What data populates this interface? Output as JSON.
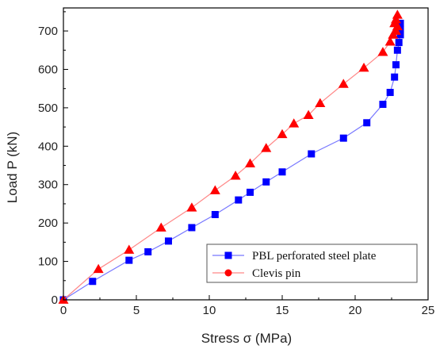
{
  "chart_data": {
    "type": "line",
    "title": "",
    "xlabel": "Stress σ (MPa)",
    "ylabel": "Load P (kN)",
    "xlim": [
      0,
      25
    ],
    "ylim": [
      0,
      760
    ],
    "xticks": [
      0,
      5,
      10,
      15,
      20,
      25
    ],
    "yticks": [
      0,
      100,
      200,
      300,
      400,
      500,
      600,
      700
    ],
    "grid": false,
    "legend_position": "bottom-right",
    "series": [
      {
        "name": "PBL perforated steel plate",
        "color": "#0000ff",
        "marker": "square",
        "line_color": "#7777ff",
        "x": [
          0,
          2.0,
          4.5,
          5.8,
          7.2,
          8.8,
          10.4,
          12.0,
          12.8,
          13.9,
          15.0,
          17.0,
          19.2,
          20.8,
          21.9,
          22.4,
          22.7,
          22.8,
          22.9,
          23.0,
          23.1,
          23.1,
          23.1
        ],
        "y": [
          0,
          48,
          103,
          125,
          153,
          188,
          222,
          260,
          280,
          307,
          333,
          380,
          421,
          461,
          509,
          540,
          580,
          612,
          650,
          670,
          690,
          705,
          720
        ]
      },
      {
        "name": "Clevis pin",
        "color": "#ff0000",
        "marker": "triangle",
        "line_color": "#ff8888",
        "legend_marker": "circle",
        "x": [
          0,
          2.4,
          4.5,
          6.7,
          8.8,
          10.4,
          11.8,
          12.8,
          13.9,
          15.0,
          15.8,
          16.8,
          17.6,
          19.2,
          20.6,
          21.9,
          22.4,
          22.6,
          22.8,
          22.9,
          22.7,
          22.8,
          22.9
        ],
        "y": [
          0,
          80,
          130,
          188,
          240,
          285,
          323,
          355,
          395,
          431,
          459,
          481,
          512,
          562,
          604,
          645,
          672,
          690,
          700,
          712,
          720,
          730,
          742
        ]
      }
    ]
  }
}
